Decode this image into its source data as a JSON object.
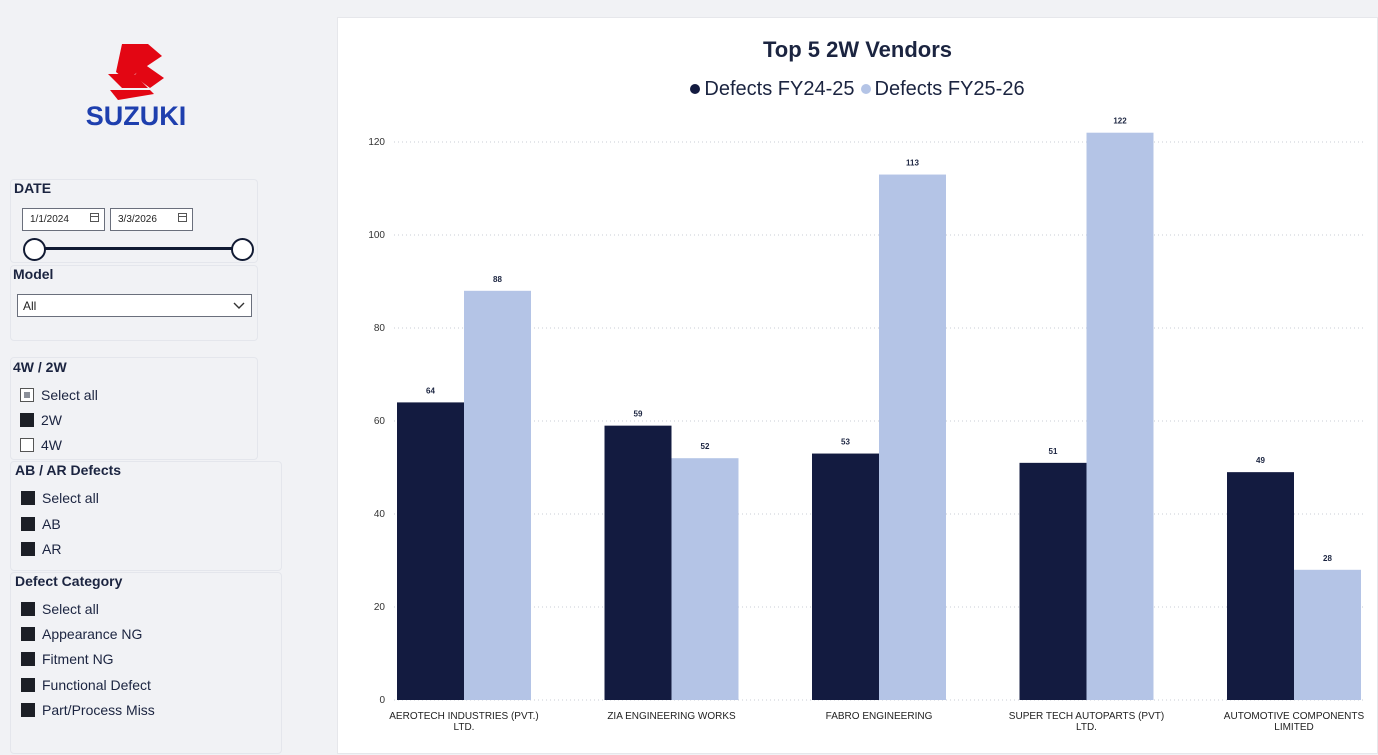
{
  "brand": {
    "name": "SUZUKI",
    "logo_color": "#e30613",
    "text_color": "#1e3fae"
  },
  "filters": {
    "date": {
      "title": "DATE",
      "start": "1/1/2024",
      "end": "3/3/2026",
      "range_fraction": [
        0,
        1
      ]
    },
    "model": {
      "title": "Model",
      "selected": "All"
    },
    "vehicle_type": {
      "title": "4W / 2W",
      "options": [
        {
          "label": "Select all",
          "state": "partial"
        },
        {
          "label": "2W",
          "state": "checked"
        },
        {
          "label": "4W",
          "state": "unchecked"
        }
      ]
    },
    "ab_ar": {
      "title": "AB / AR Defects",
      "options": [
        {
          "label": "Select all",
          "state": "checked"
        },
        {
          "label": "AB",
          "state": "checked"
        },
        {
          "label": "AR",
          "state": "checked"
        }
      ]
    },
    "defect_category": {
      "title": "Defect Category",
      "options": [
        {
          "label": "Select all",
          "state": "checked"
        },
        {
          "label": "Appearance NG",
          "state": "checked"
        },
        {
          "label": "Fitment NG",
          "state": "checked"
        },
        {
          "label": "Functional Defect",
          "state": "checked"
        },
        {
          "label": "Part/Process Miss",
          "state": "checked"
        }
      ]
    }
  },
  "chart_data": {
    "type": "bar",
    "title": "Top 5 2W Vendors",
    "categories": [
      [
        "AEROTECH INDUSTRIES (PVT.)",
        "LTD."
      ],
      [
        "ZIA ENGINEERING WORKS"
      ],
      [
        "FABRO ENGINEERING"
      ],
      [
        "SUPER TECH AUTOPARTS (PVT)",
        "LTD."
      ],
      [
        "AUTOMOTIVE COMPONENTS",
        "LIMITED"
      ]
    ],
    "series": [
      {
        "name": "Defects FY24-25",
        "color": "#131b40",
        "values": [
          64,
          59,
          53,
          51,
          49
        ]
      },
      {
        "name": "Defects FY25-26",
        "color": "#b4c4e6",
        "values": [
          88,
          52,
          113,
          122,
          28
        ]
      }
    ],
    "y_ticks": [
      0,
      20,
      40,
      60,
      80,
      100,
      120
    ],
    "ylim": [
      0,
      120
    ],
    "grid": true,
    "legend_position": "top-center"
  }
}
